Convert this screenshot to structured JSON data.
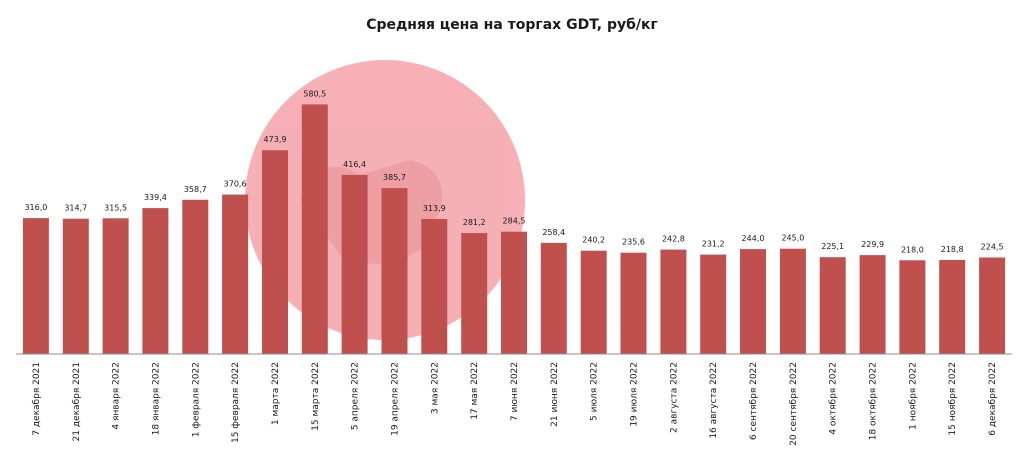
{
  "chart_data": {
    "type": "bar",
    "title": "Средняя цена на торгах GDT, руб/кг",
    "xlabel": "",
    "ylabel": "",
    "ylim": [
      0,
      600
    ],
    "grid": false,
    "legend": "none",
    "bar_color": "#c0504d",
    "categories": [
      "7 декабря 2021",
      "21 декабря 2021",
      "4 января 2022",
      "18 января 2022",
      "1 февраля 2022",
      "15 февраля 2022",
      "1 марта 2022",
      "15 марта 2022",
      "5 апреля 2022",
      "19 апреля 2022",
      "3 мая 2022",
      "17 мая 2022",
      "7 июня 2022",
      "21 июня 2022",
      "5 июля 2022",
      "19 июля 2022",
      "2 августа 2022",
      "16 августа 2022",
      "6 сентября 2022",
      "20 сентября 2022",
      "4 октября 2022",
      "18 октября 2022",
      "1 ноября 2022",
      "15 ноября 2022",
      "6 декабря 2022"
    ],
    "values": [
      316.0,
      314.7,
      315.5,
      339.4,
      358.7,
      370.6,
      473.9,
      580.5,
      416.4,
      385.7,
      313.9,
      281.2,
      284.5,
      258.4,
      240.2,
      235.6,
      242.8,
      231.2,
      244.0,
      245.0,
      225.1,
      229.9,
      218.0,
      218.8,
      224.5
    ],
    "value_labels": [
      "316,0",
      "314,7",
      "315,5",
      "339,4",
      "358,7",
      "370,6",
      "473,9",
      "580,5",
      "416,4",
      "385,7",
      "313,9",
      "281,2",
      "284,5",
      "258,4",
      "240,2",
      "235,6",
      "242,8",
      "231,2",
      "244,0",
      "245,0",
      "225,1",
      "229,9",
      "218,0",
      "218,8",
      "224,5"
    ]
  }
}
